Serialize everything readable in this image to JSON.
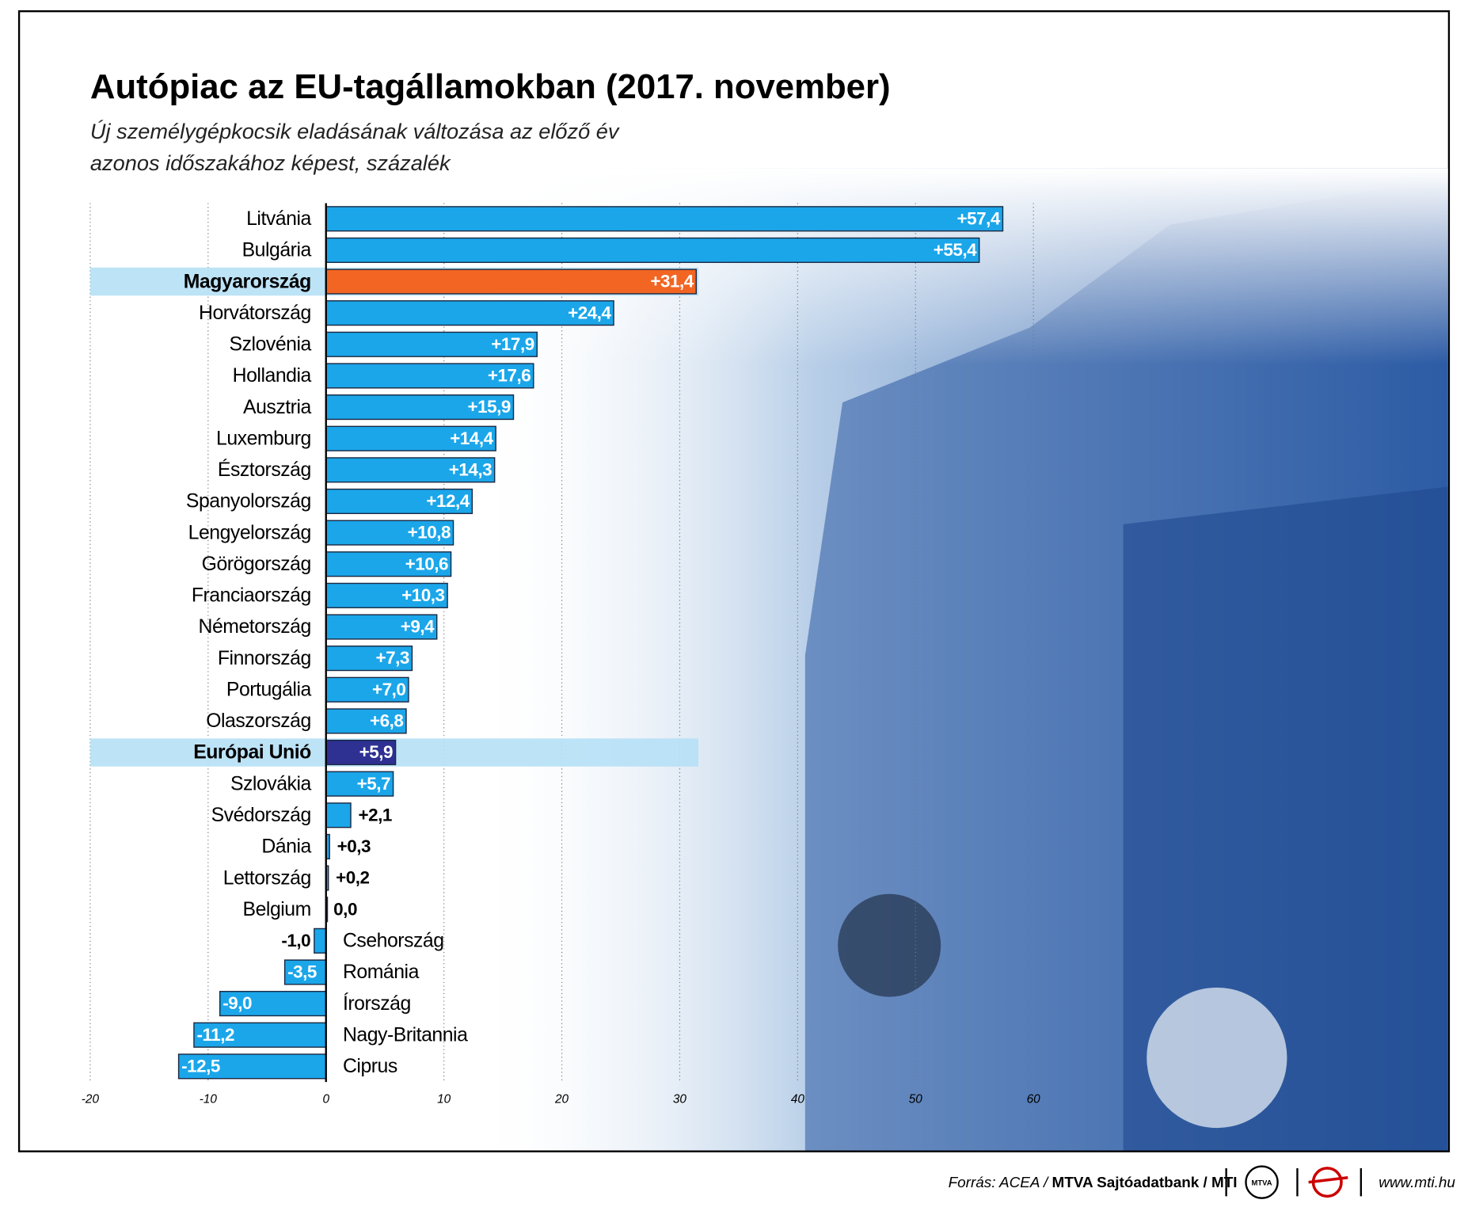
{
  "chart_data": {
    "type": "bar",
    "orientation": "horizontal",
    "title": "Autópiac az EU-tagállamokban (2017. november)",
    "subtitle": [
      "Új személygépkocsik eladásának változása az előző év",
      "azonos időszakához képest, százalék"
    ],
    "categories": [
      "Litvánia",
      "Bulgária",
      "Magyarország",
      "Horvátország",
      "Szlovénia",
      "Hollandia",
      "Ausztria",
      "Luxemburg",
      "Észtország",
      "Spanyolország",
      "Lengyelország",
      "Görögország",
      "Franciaország",
      "Németország",
      "Finnország",
      "Portugália",
      "Olaszország",
      "Európai Unió",
      "Szlovákia",
      "Svédország",
      "Dánia",
      "Lettország",
      "Belgium",
      "Csehország",
      "Románia",
      "Írország",
      "Nagy-Britannia",
      "Ciprus"
    ],
    "values": [
      57.4,
      55.4,
      31.4,
      24.4,
      17.9,
      17.6,
      15.9,
      14.4,
      14.3,
      12.4,
      10.8,
      10.6,
      10.3,
      9.4,
      7.3,
      7.0,
      6.8,
      5.9,
      5.7,
      2.1,
      0.3,
      0.2,
      0.0,
      -1.0,
      -3.5,
      -9.0,
      -11.2,
      -12.5
    ],
    "value_labels": [
      "+57,4",
      "+55,4",
      "+31,4",
      "+24,4",
      "+17,9",
      "+17,6",
      "+15,9",
      "+14,4",
      "+14,3",
      "+12,4",
      "+10,8",
      "+10,6",
      "+10,3",
      "+9,4",
      "+7,3",
      "+7,0",
      "+6,8",
      "+5,9",
      "+5,7",
      "+2,1",
      "+0,3",
      "+0,2",
      "0,0",
      "-1,0",
      "-3,5",
      "-9,0",
      "-11,2",
      "-12,5"
    ],
    "color": "#1ba6ea",
    "bar_colors": [
      "#1ba6ea",
      "#1ba6ea",
      "#f26522",
      "#1ba6ea",
      "#1ba6ea",
      "#1ba6ea",
      "#1ba6ea",
      "#1ba6ea",
      "#1ba6ea",
      "#1ba6ea",
      "#1ba6ea",
      "#1ba6ea",
      "#1ba6ea",
      "#1ba6ea",
      "#1ba6ea",
      "#1ba6ea",
      "#1ba6ea",
      "#2e3192",
      "#1ba6ea",
      "#1ba6ea",
      "#1ba6ea",
      "#1ba6ea",
      "#1ba6ea",
      "#1ba6ea",
      "#1ba6ea",
      "#1ba6ea",
      "#1ba6ea",
      "#1ba6ea"
    ],
    "xlim": [
      -20,
      60
    ],
    "xticks": [
      -20,
      -10,
      0,
      10,
      20,
      30,
      40,
      50,
      60
    ],
    "grid": true
  },
  "footer": {
    "source_prefix": "Forrás: ACEA / ",
    "source_bold": "MTVA Sajtóadatbank / MTI",
    "logo": "MTVA",
    "website": "www.mti.hu"
  }
}
